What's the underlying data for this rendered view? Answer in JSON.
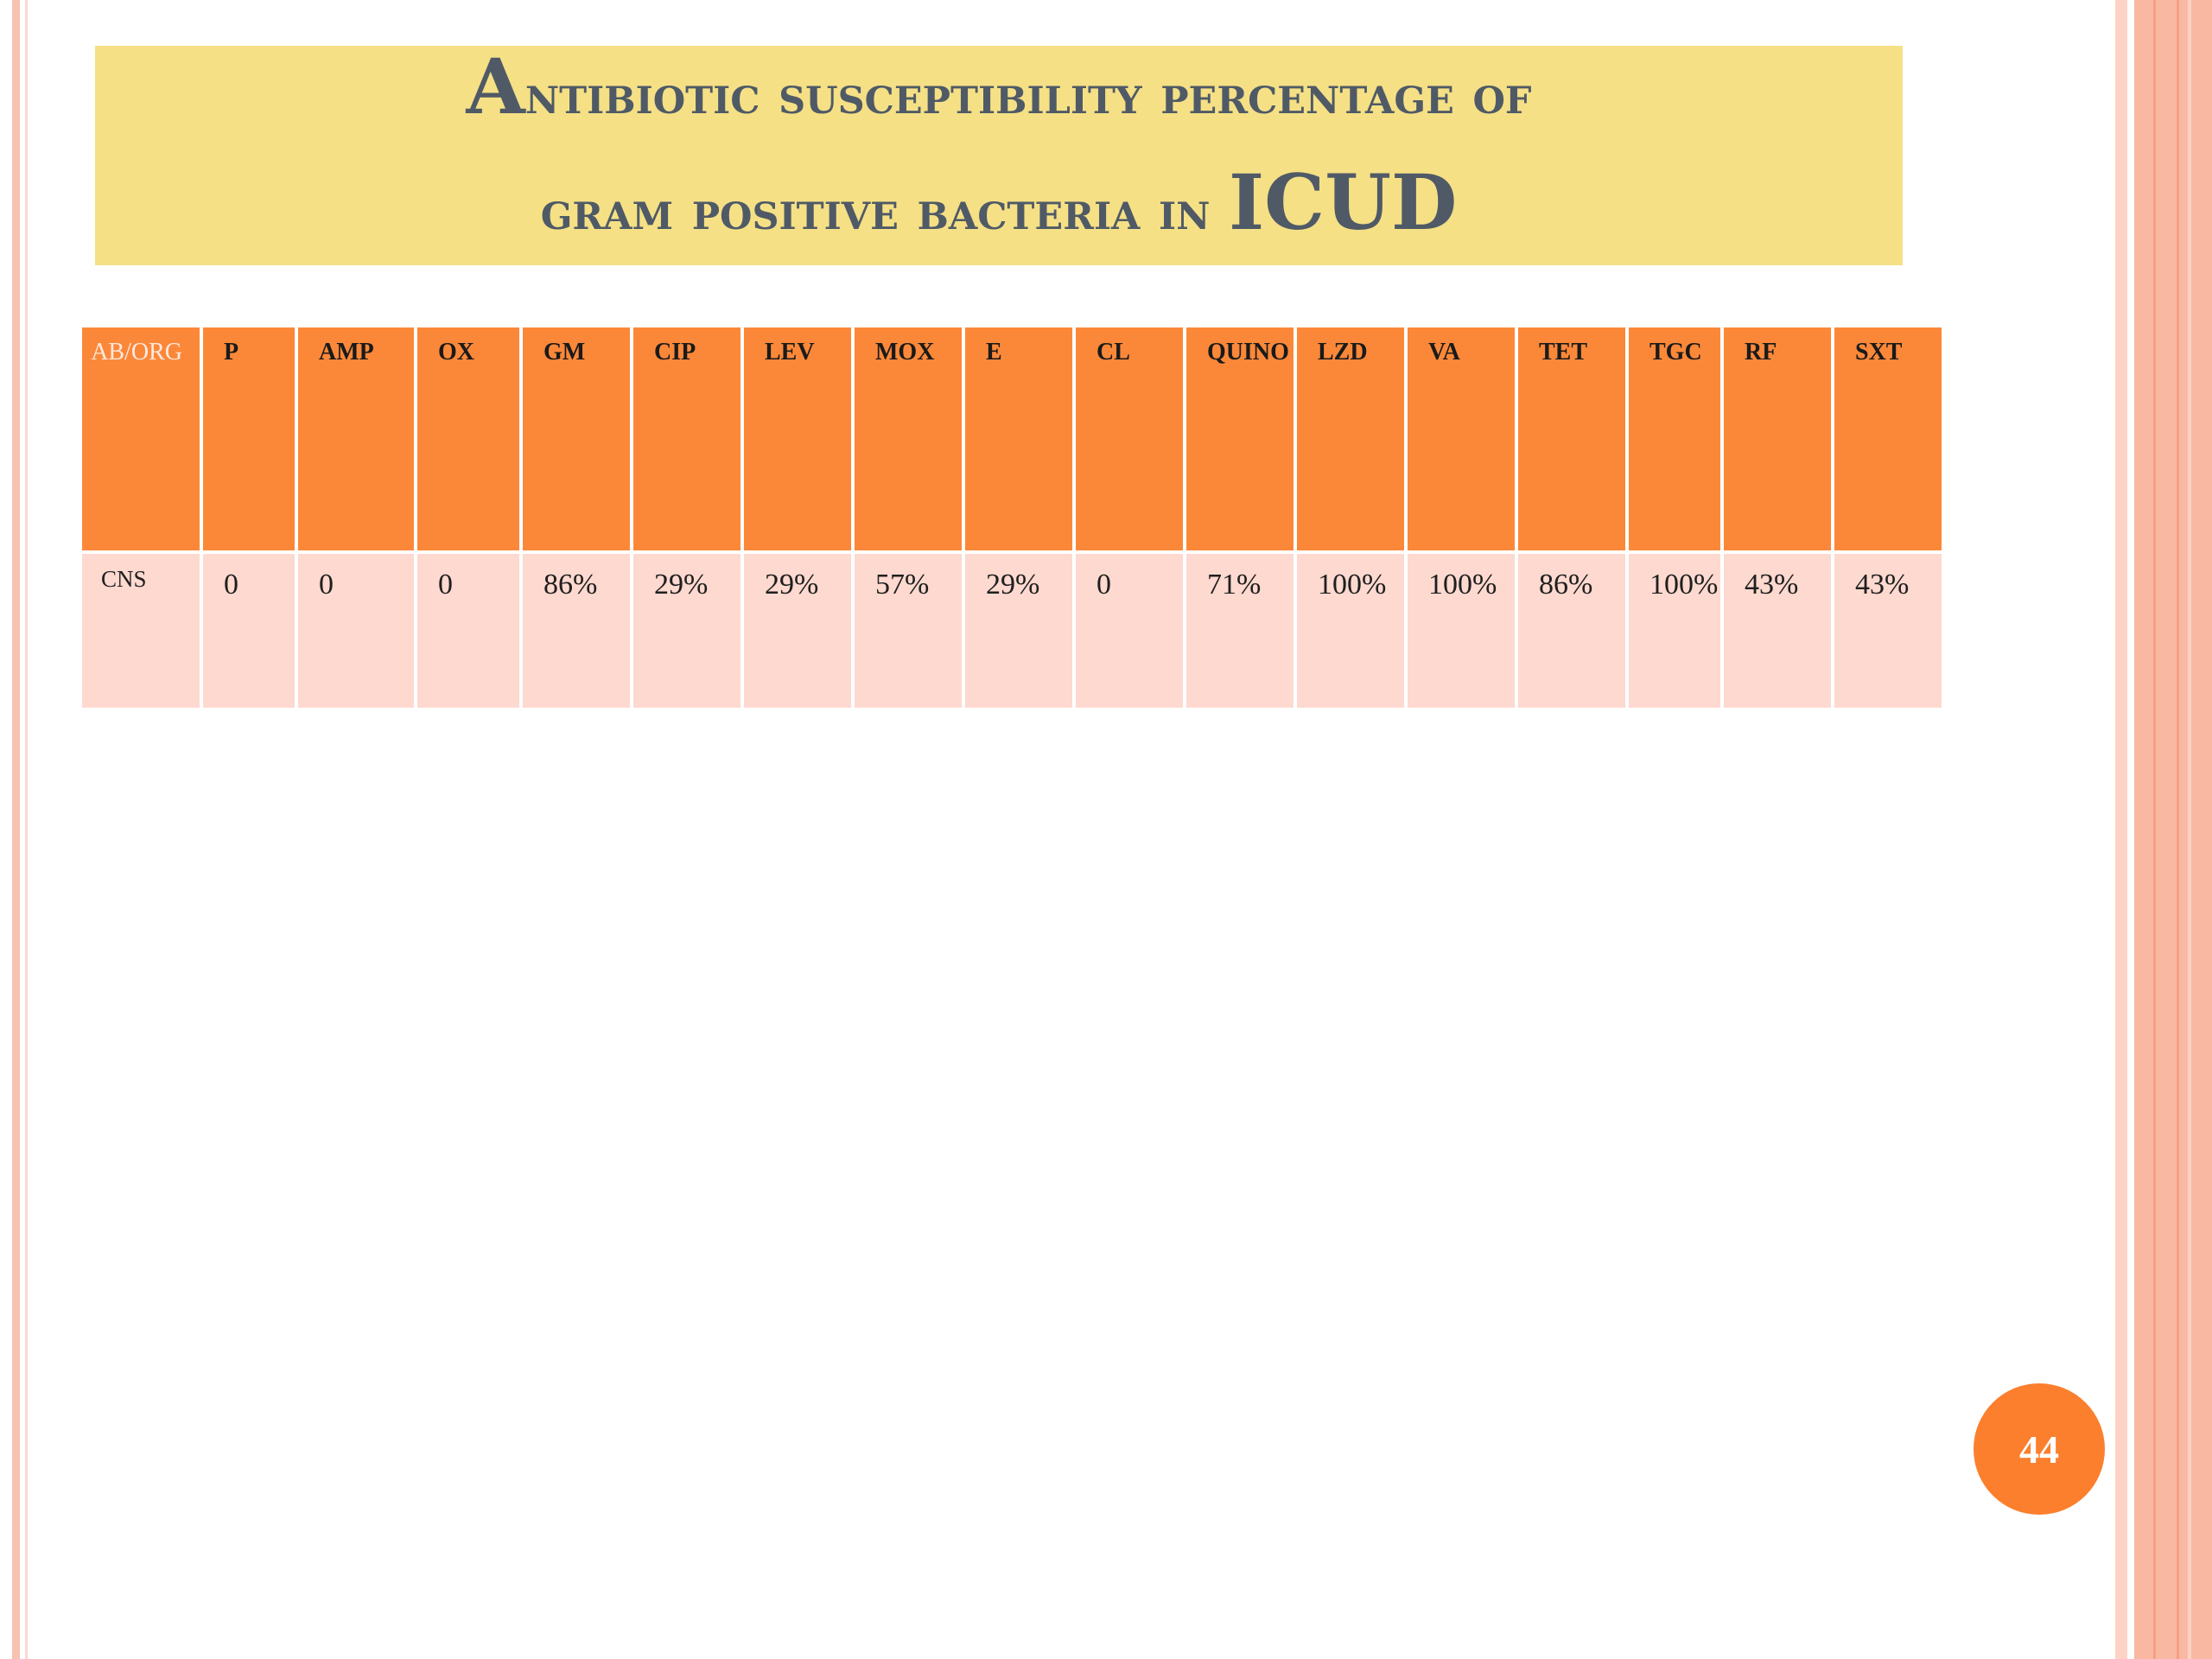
{
  "slide": {
    "title_line1_first": "A",
    "title_line1_rest": "ntibiotic susceptibility percentage of",
    "title_line2_rest": "gram positive bacteria in ",
    "title_line2_acronym": "ICUD",
    "page_number": "44"
  },
  "table": {
    "headers": [
      "AB/ORG",
      "P",
      "AMP",
      "OX",
      "GM",
      "CIP",
      "LEV",
      "MOX",
      "E",
      "CL",
      "QUINO",
      "LZD",
      "VA",
      "TET",
      "TGC",
      "RF",
      "SXT"
    ],
    "rows": [
      {
        "organism": "CNS",
        "values": [
          "0",
          "0",
          "0",
          "86%",
          "29%",
          "29%",
          "57%",
          "29%",
          "0",
          "71%",
          "100%",
          "100%",
          "86%",
          "100%",
          "43%",
          "43%"
        ]
      }
    ]
  },
  "colors": {
    "title_bg": "#f5e086",
    "title_text": "#4f5a66",
    "header_bg": "#fb8839",
    "row_bg": "#fdd9cf",
    "badge_bg": "#fb7f2d"
  }
}
